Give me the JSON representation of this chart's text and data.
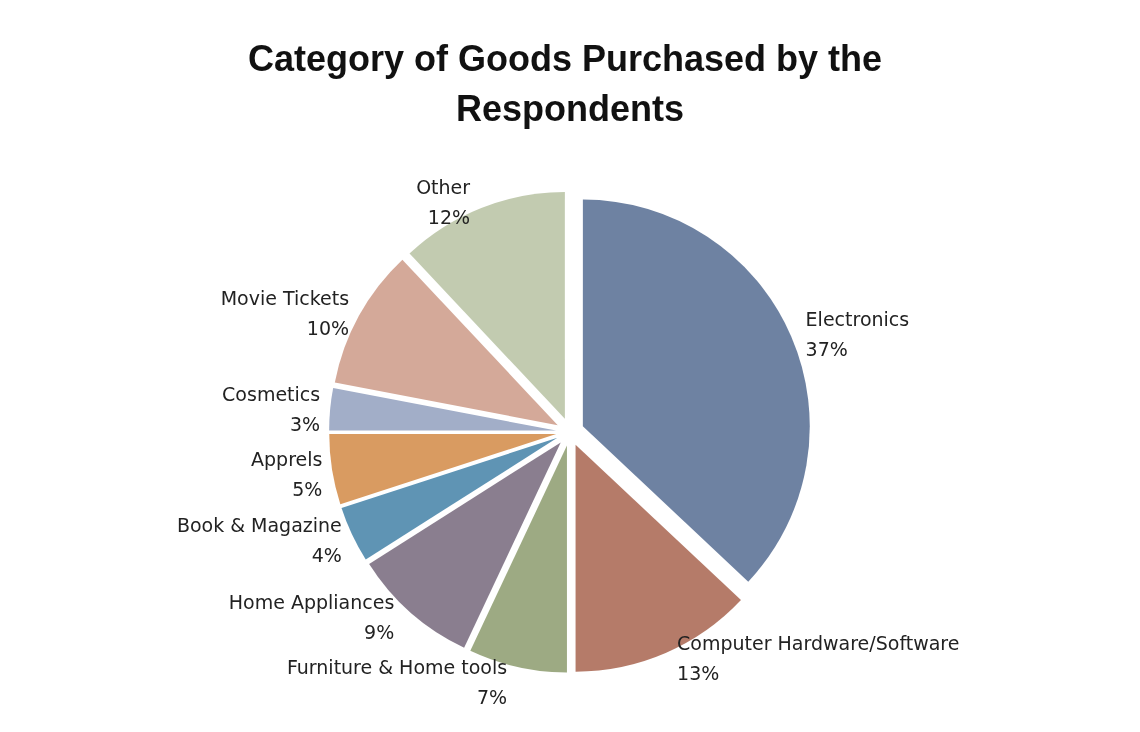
{
  "chart_data": {
    "type": "pie",
    "title": "Category of Goods Purchased by the Respondents",
    "categories": [
      "Electronics",
      "Computer Hardware/Software",
      "Furniture & Home tools",
      "Home Appliances",
      "Book & Magazine",
      "Apprels",
      "Cosmetics",
      "Movie Tickets",
      "Other"
    ],
    "values": [
      37,
      13,
      7,
      9,
      4,
      5,
      3,
      10,
      12
    ],
    "value_labels": [
      "37%",
      "13%",
      "7%",
      "9%",
      "4%",
      "5%",
      "3%",
      "10%",
      "12%"
    ],
    "colors": [
      "#6e82a2",
      "#b57b69",
      "#9daa83",
      "#8a7e8f",
      "#5f94b4",
      "#d99b61",
      "#a2aec8",
      "#d4a999",
      "#c2cbb0"
    ],
    "legend": false
  }
}
